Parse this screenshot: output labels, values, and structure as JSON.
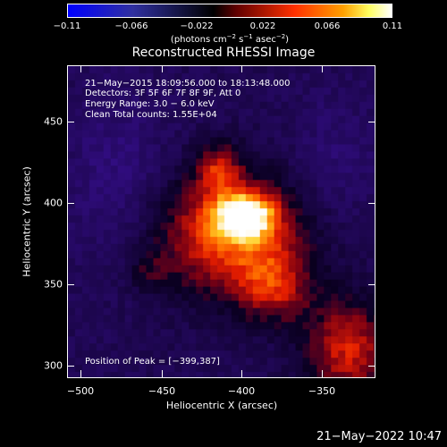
{
  "colorbar": {
    "ticks": [
      "−0.11",
      "−0.066",
      "−0.022",
      "0.022",
      "0.066",
      "0.11"
    ],
    "units_text": "(photons cm",
    "units_exp1": "−2",
    "units_s": " s",
    "units_exp2": "−1",
    "units_asec": " asec",
    "units_exp3": "−2",
    "units_close": ")"
  },
  "title": "Reconstructed RHESSI Image",
  "annotations": {
    "time": "21−May−2015 18:09:56.000 to 18:13:48.000",
    "detectors": "Detectors: 3F 5F 6F 7F 8F 9F, Att 0",
    "energy": "Energy Range: 3.0 − 6.0 keV",
    "method": "Clean     Total counts: 1.55E+04",
    "peak": "Position of Peak = [−399,387]"
  },
  "axes": {
    "xlabel": "Heliocentric X (arcsec)",
    "ylabel": "Heliocentric Y (arcsec)",
    "xticks": [
      "−500",
      "−450",
      "−400",
      "−350"
    ],
    "yticks": [
      "300",
      "350",
      "400",
      "450"
    ]
  },
  "timestamp": "21−May−2022 10:47",
  "colors": {
    "low": "#0000ff",
    "neutral": "#000000",
    "mid": "#ff3000",
    "high": "#ffffff"
  }
}
